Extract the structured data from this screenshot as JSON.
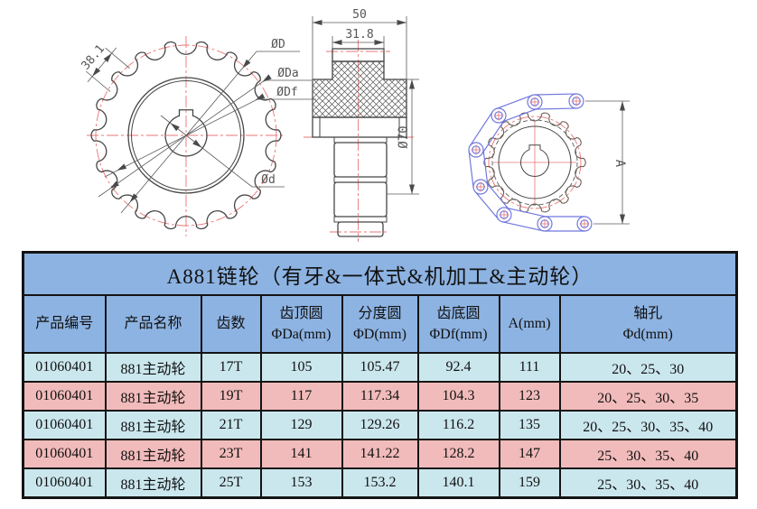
{
  "drawings": {
    "front_view": {
      "labels": {
        "pitch_dim": "38.1",
        "d": "ØD",
        "da": "ØDa",
        "df": "ØDf",
        "bore": "Ød"
      }
    },
    "section_view": {
      "labels": {
        "outer_width": "50",
        "inner_width": "31.8",
        "plate_dia": "Ø70"
      }
    },
    "chain_view": {
      "labels": {
        "height": "A"
      }
    }
  },
  "table": {
    "title": "A881链轮（有牙&一体式&机加工&主动轮）",
    "columns": [
      "产品编号",
      "产品名称",
      "齿数",
      "齿顶圆\nΦDa(mm)",
      "分度圆\nΦD(mm)",
      "齿底圆\nΦDf(mm)",
      "A(mm)",
      "轴孔\nΦd(mm)"
    ],
    "rows": [
      {
        "tone": "cyan",
        "cells": [
          "01060401",
          "881主动轮",
          "17T",
          "105",
          "105.47",
          "92.4",
          "111",
          "20、25、30"
        ]
      },
      {
        "tone": "pink",
        "cells": [
          "01060401",
          "881主动轮",
          "19T",
          "117",
          "117.34",
          "104.3",
          "123",
          "20、25、30、35"
        ]
      },
      {
        "tone": "cyan",
        "cells": [
          "01060401",
          "881主动轮",
          "21T",
          "129",
          "129.26",
          "116.2",
          "135",
          "20、25、30、35、40"
        ]
      },
      {
        "tone": "pink",
        "cells": [
          "01060401",
          "881主动轮",
          "23T",
          "141",
          "141.22",
          "128.2",
          "147",
          "25、30、35、40"
        ]
      },
      {
        "tone": "cyan",
        "cells": [
          "01060401",
          "881主动轮",
          "25T",
          "153",
          "153.2",
          "140.1",
          "159",
          "25、30、35、40"
        ]
      }
    ]
  },
  "colors": {
    "header_blue": "#8db3e2",
    "row_cyan": "#cbe7ee",
    "row_pink": "#f2bbbb",
    "centerline_red": "#ea7575",
    "chain_blue": "#7178de",
    "line_dark": "#464646"
  }
}
